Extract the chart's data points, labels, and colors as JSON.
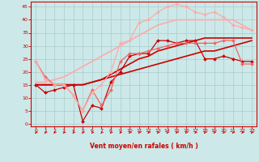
{
  "xlabel": "Vent moyen/en rafales ( km/h )",
  "x_ticks": [
    0,
    1,
    2,
    3,
    4,
    5,
    6,
    7,
    8,
    9,
    10,
    11,
    12,
    13,
    14,
    15,
    16,
    17,
    18,
    19,
    20,
    21,
    22,
    23
  ],
  "ylabel_ticks": [
    0,
    5,
    10,
    15,
    20,
    25,
    30,
    35,
    40,
    45
  ],
  "ylim": [
    -1,
    47
  ],
  "xlim": [
    -0.5,
    23.5
  ],
  "bg_color": "#cce8e8",
  "grid_color": "#aacccc",
  "tick_color": "#cc0000",
  "xlabel_color": "#cc0000",
  "lines": [
    {
      "x": [
        0,
        1,
        2,
        3,
        4,
        5,
        6,
        7,
        8,
        9,
        10,
        11,
        12,
        13,
        14,
        15,
        16,
        17,
        18,
        19,
        20,
        21,
        22,
        23
      ],
      "y": [
        15,
        12,
        13,
        14,
        15,
        1,
        7,
        6,
        16,
        20,
        26,
        27,
        27,
        32,
        32,
        31,
        32,
        32,
        25,
        25,
        26,
        25,
        24,
        24
      ],
      "color": "#cc0000",
      "marker": "D",
      "lw": 0.9,
      "ms": 2.0
    },
    {
      "x": [
        0,
        1,
        2,
        3,
        4,
        5,
        6,
        7,
        8,
        9,
        10,
        11,
        12,
        13,
        14,
        15,
        16,
        17,
        18,
        19,
        20,
        21,
        22,
        23
      ],
      "y": [
        15,
        15,
        15,
        15,
        15,
        15,
        16,
        17,
        18,
        19,
        20,
        21,
        22,
        23,
        24,
        25,
        26,
        27,
        28,
        28,
        29,
        30,
        31,
        32
      ],
      "color": "#cc0000",
      "marker": null,
      "lw": 1.2,
      "ms": 0
    },
    {
      "x": [
        0,
        1,
        2,
        3,
        4,
        5,
        6,
        7,
        8,
        9,
        10,
        11,
        12,
        13,
        14,
        15,
        16,
        17,
        18,
        19,
        20,
        21,
        22,
        23
      ],
      "y": [
        15,
        15,
        15,
        15,
        15,
        15,
        16,
        17,
        19,
        21,
        23,
        25,
        26,
        28,
        29,
        30,
        31,
        32,
        33,
        33,
        33,
        33,
        33,
        33
      ],
      "color": "#cc0000",
      "marker": null,
      "lw": 1.2,
      "ms": 0
    },
    {
      "x": [
        0,
        1,
        2,
        3,
        4,
        5,
        6,
        7,
        8,
        9,
        10,
        11,
        12,
        13,
        14,
        15,
        16,
        17,
        18,
        19,
        20,
        21,
        22,
        23
      ],
      "y": [
        24,
        18,
        15,
        15,
        11,
        5,
        13,
        7,
        13,
        24,
        27,
        27,
        28,
        29,
        30,
        31,
        31,
        31,
        31,
        31,
        32,
        32,
        23,
        23
      ],
      "color": "#ee6666",
      "marker": "D",
      "lw": 0.9,
      "ms": 2.0
    },
    {
      "x": [
        0,
        1,
        2,
        3,
        4,
        5,
        6,
        7,
        8,
        9,
        10,
        11,
        12,
        13,
        14,
        15,
        16,
        17,
        18,
        19,
        20,
        21,
        22,
        23
      ],
      "y": [
        24,
        17,
        15,
        15,
        11,
        5,
        12,
        15,
        20,
        31,
        32,
        39,
        40,
        43,
        45,
        46,
        45,
        43,
        42,
        43,
        41,
        38,
        37,
        36
      ],
      "color": "#ffaaaa",
      "marker": "D",
      "lw": 0.9,
      "ms": 2.0
    },
    {
      "x": [
        0,
        1,
        2,
        3,
        4,
        5,
        6,
        7,
        8,
        9,
        10,
        11,
        12,
        13,
        14,
        15,
        16,
        17,
        18,
        19,
        20,
        21,
        22,
        23
      ],
      "y": [
        16,
        16,
        17,
        18,
        20,
        22,
        24,
        26,
        28,
        30,
        32,
        34,
        36,
        38,
        39,
        40,
        40,
        40,
        40,
        40,
        40,
        40,
        38,
        36
      ],
      "color": "#ffaaaa",
      "marker": null,
      "lw": 1.2,
      "ms": 0
    }
  ]
}
